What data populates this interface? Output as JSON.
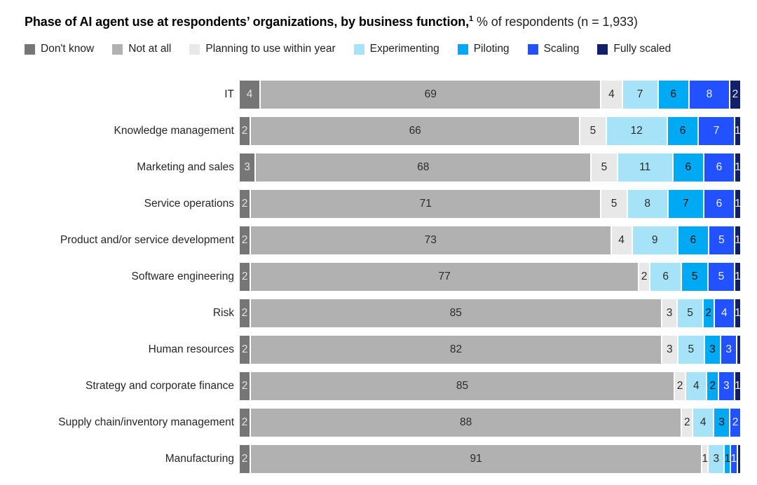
{
  "title": {
    "bold": "Phase of AI agent use at respondents’ organizations, by business function,",
    "superscript": "1",
    "regular": " % of respondents (n = 1,933)"
  },
  "chart_data": {
    "type": "bar",
    "orientation": "horizontal",
    "stacked": true,
    "normalized_to_100_percent": true,
    "unit": "% of respondents",
    "sample_size": "n = 1,933",
    "legend_position": "top",
    "grid": false,
    "categories": [
      "IT",
      "Knowledge management",
      "Marketing and sales",
      "Service operations",
      "Product and/or service development",
      "Software engineering",
      "Risk",
      "Human resources",
      "Strategy and corporate finance",
      "Supply chain/inventory management",
      "Manufacturing"
    ],
    "series": [
      {
        "name": "Don't know",
        "color": "#767676",
        "label_color": "#e3e3e3",
        "values": [
          4,
          2,
          3,
          2,
          2,
          2,
          2,
          2,
          2,
          2,
          2
        ]
      },
      {
        "name": "Not at all",
        "color": "#b1b1b1",
        "label_color": "#2b2b2b",
        "values": [
          69,
          66,
          68,
          71,
          73,
          77,
          85,
          82,
          85,
          88,
          91
        ]
      },
      {
        "name": "Planning to use within year",
        "color": "#e8e8e8",
        "label_color": "#2b2b2b",
        "values": [
          4,
          5,
          5,
          5,
          4,
          2,
          3,
          3,
          2,
          2,
          1
        ]
      },
      {
        "name": "Experimenting",
        "color": "#a6e3f8",
        "label_color": "#2b2b2b",
        "values": [
          7,
          12,
          11,
          8,
          9,
          6,
          5,
          5,
          4,
          4,
          3
        ]
      },
      {
        "name": "Piloting",
        "color": "#00a9f4",
        "label_color": "#111111",
        "values": [
          6,
          6,
          6,
          7,
          6,
          5,
          2,
          3,
          2,
          3,
          1
        ]
      },
      {
        "name": "Scaling",
        "color": "#2251ff",
        "label_color": "#eef1fb",
        "values": [
          8,
          7,
          6,
          6,
          5,
          5,
          4,
          3,
          3,
          2,
          1
        ]
      },
      {
        "name": "Fully scaled",
        "color": "#121f6b",
        "label_color": "#e8ebf5",
        "values": [
          2,
          1,
          1,
          1,
          1,
          1,
          1,
          0.5,
          1,
          0,
          0.5
        ]
      }
    ]
  }
}
